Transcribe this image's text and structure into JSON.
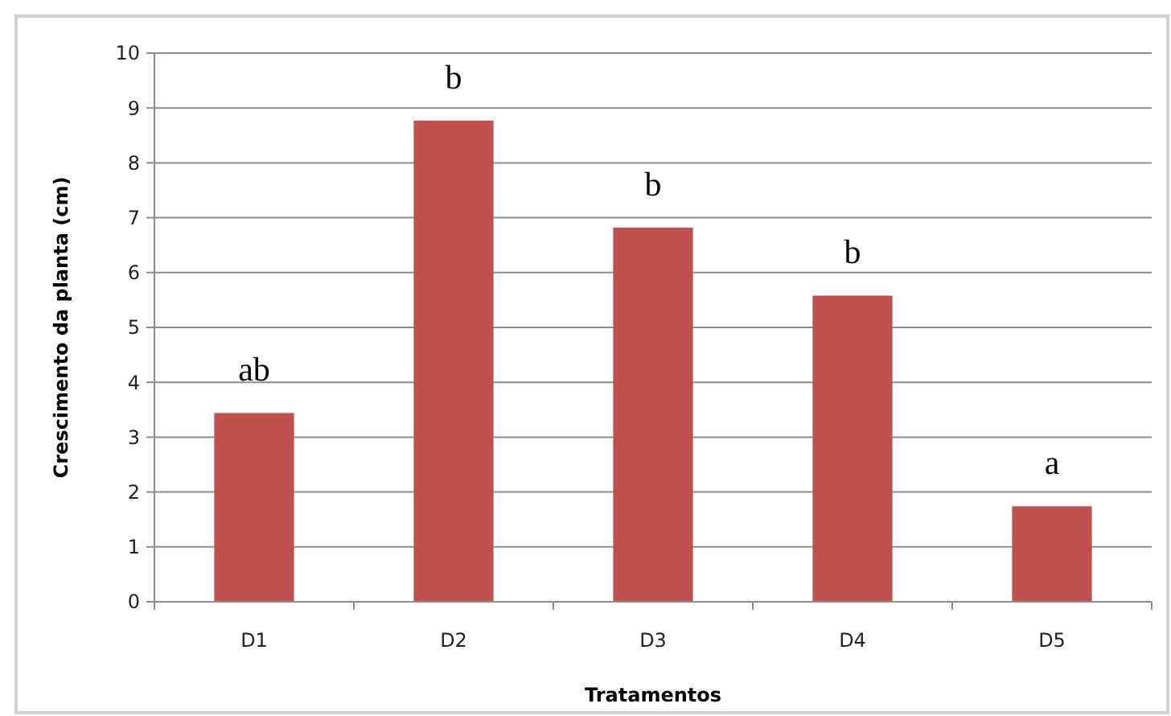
{
  "chart_data": {
    "type": "bar",
    "xlabel": "Tratamentos",
    "ylabel": "Crescimento da planta (cm)",
    "categories": [
      "D1",
      "D2",
      "D3",
      "D4",
      "D5"
    ],
    "values": [
      3.44,
      8.77,
      6.82,
      5.58,
      1.74
    ],
    "color": "#c0504d",
    "ylim": [
      0,
      10
    ],
    "yticks": [
      0,
      1,
      2,
      3,
      4,
      5,
      6,
      7,
      8,
      9,
      10
    ],
    "grid": "y",
    "annotations": [
      "ab",
      "b",
      "b",
      "b",
      "a"
    ]
  }
}
